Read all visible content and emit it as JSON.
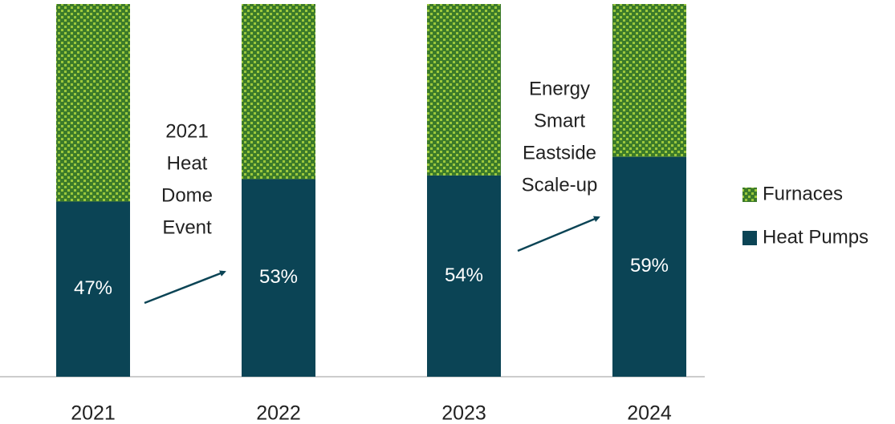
{
  "chart_data": {
    "type": "stacked_bar",
    "categories": [
      "2021",
      "2022",
      "2023",
      "2024"
    ],
    "series": [
      {
        "name": "Heat Pumps",
        "color": "#0b4455",
        "values": [
          47,
          53,
          54,
          59
        ],
        "value_labels": [
          "47%",
          "53%",
          "54%",
          "59%"
        ]
      },
      {
        "name": "Furnaces",
        "color": "#3b7a2a",
        "pattern_color": "#9cc83c",
        "values": [
          53,
          47,
          46,
          41
        ]
      }
    ],
    "ylim": [
      0,
      100
    ],
    "legend": "right",
    "annotations": [
      {
        "lines": [
          "2021",
          "Heat",
          "Dome",
          "Event"
        ]
      },
      {
        "lines": [
          "Energy",
          "Smart",
          "Eastside",
          "Scale-up"
        ]
      }
    ]
  }
}
